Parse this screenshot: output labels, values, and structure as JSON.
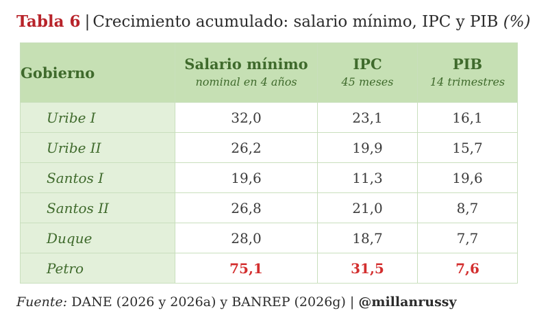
{
  "title": {
    "label": "Tabla 6",
    "text": "Crecimiento acumulado: salario mínimo, IPC y PIB",
    "unit": "(%)"
  },
  "table": {
    "headers": [
      {
        "main": "Gobierno",
        "sub": ""
      },
      {
        "main": "Salario mínimo",
        "sub": "nominal en 4 años"
      },
      {
        "main": "IPC",
        "sub": "45 meses"
      },
      {
        "main": "PIB",
        "sub": "14 trimestres"
      }
    ],
    "rows": [
      {
        "gobierno": "Uribe I",
        "salario": "32,0",
        "ipc": "23,1",
        "pib": "16,1"
      },
      {
        "gobierno": "Uribe II",
        "salario": "26,2",
        "ipc": "19,9",
        "pib": "15,7"
      },
      {
        "gobierno": "Santos I",
        "salario": "19,6",
        "ipc": "11,3",
        "pib": "19,6"
      },
      {
        "gobierno": "Santos II",
        "salario": "26,8",
        "ipc": "21,0",
        "pib": "8,7"
      },
      {
        "gobierno": "Duque",
        "salario": "28,0",
        "ipc": "18,7",
        "pib": "7,7"
      },
      {
        "gobierno": "Petro",
        "salario": "75,1",
        "ipc": "31,5",
        "pib": "7,6",
        "highlight": true
      }
    ]
  },
  "source": {
    "prefix": "Fuente:",
    "text": "DANE (2026 y 2026a) y BANREP (2026g) |",
    "handle": "@millanrussy"
  },
  "colors": {
    "label": "#b8232a",
    "header_bg": "#c6e0b4",
    "header_text": "#3f6a2c",
    "gov_col_bg": "#e3f0da",
    "highlight": "#d32f2f"
  }
}
